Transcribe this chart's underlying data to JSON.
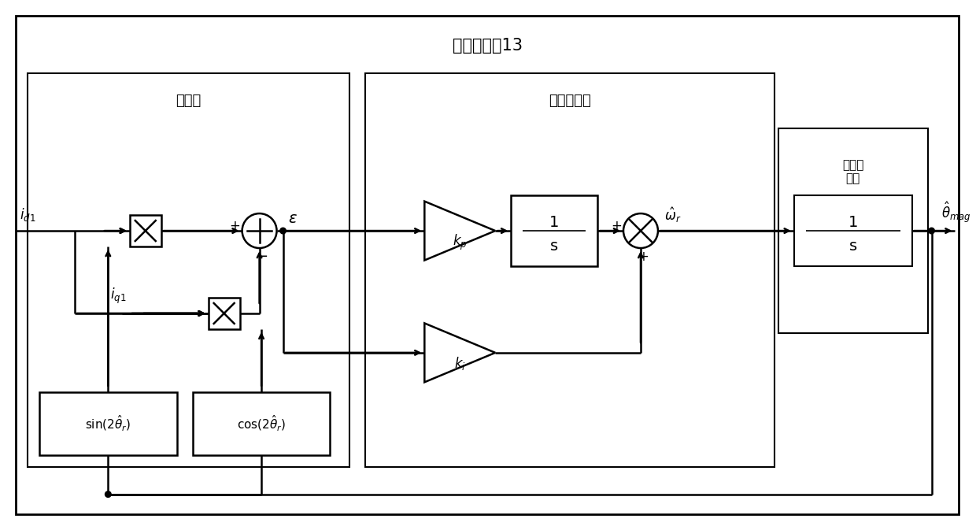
{
  "title": "锁相环模块13",
  "block1_label": "鉴相器",
  "block2_label": "环路滤波器",
  "block3_label": "压控振\n荡器",
  "bg_color": "#ffffff",
  "line_color": "#000000",
  "font_color": "#000000"
}
